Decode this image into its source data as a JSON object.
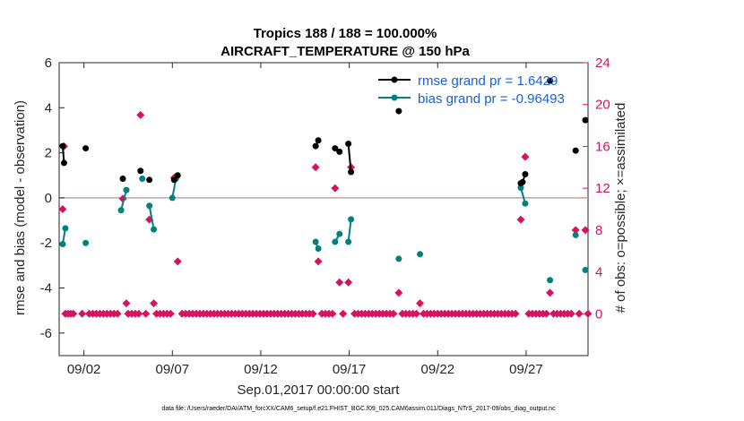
{
  "chart_data": {
    "type": "line",
    "title_line1": "Tropics 188 / 188 = 100.000%",
    "title_line2": "AIRCRAFT_TEMPERATURE @ 150 hPa",
    "xlabel": "Sep.01,2017 00:00:00 start",
    "ylabel_left": "rmse and bias (model - observation)",
    "ylabel_right": "# of obs: o=possible; ×=assimilated",
    "footer": "data file: /Users/raeder/DAI/ATM_forcXX/CAM6_setup/f.e21.FHIST_BGC.f09_025.CAM6assim.011/Diags_NTrS_2017-09/obs_diag_output.nc",
    "xlim": [
      0.6,
      30.5
    ],
    "ylim_left": [
      -7,
      6
    ],
    "ylim_right": [
      -4,
      24
    ],
    "x_ticks": [
      {
        "x": 2,
        "label": "09/02"
      },
      {
        "x": 7,
        "label": "09/07"
      },
      {
        "x": 12,
        "label": "09/12"
      },
      {
        "x": 17,
        "label": "09/17"
      },
      {
        "x": 22,
        "label": "09/22"
      },
      {
        "x": 27,
        "label": "09/27"
      }
    ],
    "y_ticks_left": [
      "-6",
      "-4",
      "-2",
      "0",
      "2",
      "4",
      "6"
    ],
    "y_ticks_right": [
      "0",
      "4",
      "8",
      "12",
      "16",
      "20",
      "24"
    ],
    "colors": {
      "rmse": "#000000",
      "bias": "#008080",
      "obs": "#d6135f",
      "zero_line": "#bfa4a4",
      "legend_text": "#1a5fd9"
    },
    "legend": [
      {
        "name": "rmse grand pr = 1.6429",
        "color": "#000000"
      },
      {
        "name": "bias grand pr = -0.96493",
        "color": "#008080"
      }
    ],
    "series": [
      {
        "name": "rmse",
        "segments": [
          [
            [
              0.8,
              2.3
            ],
            [
              0.875,
              1.55
            ]
          ],
          [
            [
              2.1,
              2.2
            ]
          ],
          [
            [
              4.2,
              0.85
            ]
          ],
          [
            [
              5.2,
              1.2
            ]
          ],
          [
            [
              5.7,
              0.8
            ]
          ],
          [
            [
              7.1,
              0.8
            ],
            [
              7.3,
              1.0
            ]
          ],
          [
            [
              15.1,
              2.3
            ],
            [
              15.25,
              2.55
            ]
          ],
          [
            [
              16.2,
              2.2
            ],
            [
              16.45,
              2.05
            ]
          ],
          [
            [
              16.95,
              2.4
            ],
            [
              17.1,
              1.15
            ]
          ],
          [
            [
              19.8,
              3.85
            ]
          ],
          [
            [
              26.7,
              0.65
            ],
            [
              26.8,
              0.7
            ],
            [
              26.95,
              1.05
            ]
          ],
          [
            [
              28.35,
              5.2
            ]
          ],
          [
            [
              29.8,
              2.1
            ]
          ],
          [
            [
              30.35,
              3.45
            ]
          ]
        ]
      },
      {
        "name": "bias",
        "segments": [
          [
            [
              0.8,
              -2.05
            ],
            [
              0.95,
              -1.35
            ]
          ],
          [
            [
              2.1,
              -2.0
            ]
          ],
          [
            [
              4.1,
              -0.55
            ],
            [
              4.4,
              0.35
            ]
          ],
          [
            [
              5.3,
              0.85
            ]
          ],
          [
            [
              5.7,
              -0.35
            ],
            [
              5.95,
              -1.4
            ]
          ],
          [
            [
              7.0,
              0.0
            ],
            [
              7.2,
              0.85
            ]
          ],
          [
            [
              15.1,
              -1.95
            ],
            [
              15.25,
              -2.25
            ]
          ],
          [
            [
              16.2,
              -1.95
            ],
            [
              16.45,
              -1.6
            ]
          ],
          [
            [
              16.95,
              -1.95
            ],
            [
              17.1,
              -0.95
            ]
          ],
          [
            [
              19.8,
              -2.7
            ]
          ],
          [
            [
              21.0,
              -2.5
            ]
          ],
          [
            [
              26.7,
              0.45
            ],
            [
              26.95,
              -0.25
            ]
          ],
          [
            [
              28.35,
              -3.65
            ]
          ],
          [
            [
              29.8,
              -1.65
            ]
          ],
          [
            [
              30.35,
              -3.2
            ]
          ]
        ]
      },
      {
        "name": "obs_possible",
        "points": [
          [
            0.8,
            10
          ],
          [
            0.875,
            16
          ],
          [
            4.2,
            11
          ],
          [
            5.2,
            19
          ],
          [
            5.7,
            9
          ],
          [
            7.1,
            13
          ],
          [
            7.3,
            5
          ],
          [
            15.1,
            14
          ],
          [
            15.25,
            5
          ],
          [
            16.2,
            12
          ],
          [
            16.45,
            3
          ],
          [
            16.95,
            3
          ],
          [
            17.1,
            14
          ],
          [
            19.8,
            2
          ],
          [
            21.0,
            1
          ],
          [
            26.7,
            9
          ],
          [
            26.95,
            15
          ],
          [
            28.35,
            2
          ],
          [
            29.8,
            8
          ],
          [
            30.35,
            8
          ],
          [
            4.4,
            1
          ],
          [
            5.95,
            1
          ],
          [
            0.95,
            0
          ],
          [
            1.1,
            0
          ],
          [
            1.25,
            0
          ],
          [
            1.4,
            0
          ],
          [
            1.9,
            0
          ],
          [
            2.3,
            0
          ],
          [
            2.5,
            0
          ],
          [
            2.7,
            0
          ],
          [
            2.9,
            0
          ],
          [
            3.1,
            0
          ],
          [
            3.3,
            0
          ],
          [
            3.5,
            0
          ],
          [
            3.7,
            0
          ],
          [
            3.9,
            0
          ],
          [
            4.5,
            0
          ],
          [
            4.7,
            0
          ],
          [
            4.9,
            0
          ],
          [
            5.1,
            0
          ],
          [
            5.5,
            0
          ],
          [
            6.1,
            0
          ],
          [
            6.3,
            0
          ],
          [
            6.5,
            0
          ],
          [
            6.7,
            0
          ],
          [
            6.9,
            0
          ],
          [
            7.55,
            0
          ],
          [
            7.75,
            0
          ],
          [
            7.95,
            0
          ],
          [
            8.15,
            0
          ],
          [
            8.35,
            0
          ],
          [
            8.55,
            0
          ],
          [
            8.75,
            0
          ],
          [
            8.95,
            0
          ],
          [
            9.15,
            0
          ],
          [
            9.35,
            0
          ],
          [
            9.55,
            0
          ],
          [
            9.75,
            0
          ],
          [
            9.95,
            0
          ],
          [
            10.15,
            0
          ],
          [
            10.35,
            0
          ],
          [
            10.55,
            0
          ],
          [
            10.75,
            0
          ],
          [
            10.95,
            0
          ],
          [
            11.15,
            0
          ],
          [
            11.35,
            0
          ],
          [
            11.55,
            0
          ],
          [
            11.75,
            0
          ],
          [
            11.95,
            0
          ],
          [
            12.15,
            0
          ],
          [
            12.35,
            0
          ],
          [
            12.55,
            0
          ],
          [
            12.75,
            0
          ],
          [
            12.95,
            0
          ],
          [
            13.15,
            0
          ],
          [
            13.35,
            0
          ],
          [
            13.55,
            0
          ],
          [
            13.75,
            0
          ],
          [
            13.95,
            0
          ],
          [
            14.15,
            0
          ],
          [
            14.35,
            0
          ],
          [
            14.55,
            0
          ],
          [
            14.75,
            0
          ],
          [
            14.95,
            0
          ],
          [
            15.45,
            0
          ],
          [
            15.65,
            0
          ],
          [
            15.85,
            0
          ],
          [
            16.05,
            0
          ],
          [
            16.65,
            0
          ],
          [
            17.3,
            0
          ],
          [
            17.5,
            0
          ],
          [
            17.7,
            0
          ],
          [
            17.9,
            0
          ],
          [
            18.1,
            0
          ],
          [
            18.3,
            0
          ],
          [
            18.5,
            0
          ],
          [
            18.7,
            0
          ],
          [
            18.9,
            0
          ],
          [
            19.1,
            0
          ],
          [
            19.3,
            0
          ],
          [
            19.5,
            0
          ],
          [
            20.0,
            0
          ],
          [
            20.2,
            0
          ],
          [
            20.4,
            0
          ],
          [
            20.6,
            0
          ],
          [
            20.8,
            0
          ],
          [
            21.2,
            0
          ],
          [
            21.4,
            0
          ],
          [
            21.6,
            0
          ],
          [
            21.8,
            0
          ],
          [
            22.0,
            0
          ],
          [
            22.2,
            0
          ],
          [
            22.4,
            0
          ],
          [
            22.6,
            0
          ],
          [
            22.8,
            0
          ],
          [
            23.0,
            0
          ],
          [
            23.2,
            0
          ],
          [
            23.4,
            0
          ],
          [
            23.6,
            0
          ],
          [
            23.8,
            0
          ],
          [
            24.0,
            0
          ],
          [
            24.2,
            0
          ],
          [
            24.4,
            0
          ],
          [
            24.6,
            0
          ],
          [
            24.8,
            0
          ],
          [
            25.0,
            0
          ],
          [
            25.2,
            0
          ],
          [
            25.4,
            0
          ],
          [
            25.6,
            0
          ],
          [
            25.8,
            0
          ],
          [
            26.0,
            0
          ],
          [
            26.2,
            0
          ],
          [
            26.4,
            0
          ],
          [
            27.15,
            0
          ],
          [
            27.35,
            0
          ],
          [
            27.55,
            0
          ],
          [
            27.75,
            0
          ],
          [
            27.95,
            0
          ],
          [
            28.15,
            0
          ],
          [
            28.55,
            0
          ],
          [
            28.75,
            0
          ],
          [
            28.95,
            0
          ],
          [
            29.15,
            0
          ],
          [
            29.35,
            0
          ],
          [
            29.55,
            0
          ],
          [
            30.0,
            0
          ],
          [
            30.5,
            0
          ]
        ]
      }
    ]
  }
}
